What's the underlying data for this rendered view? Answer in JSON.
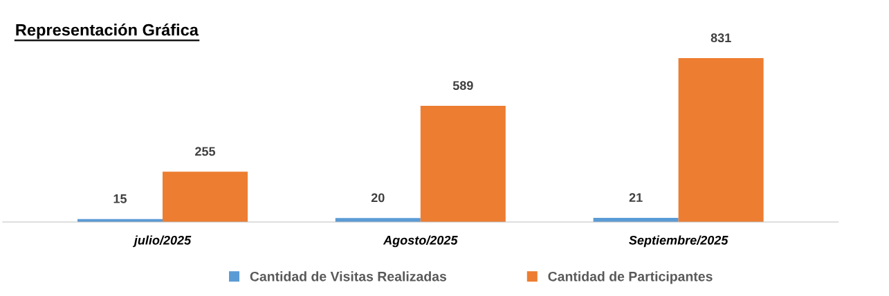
{
  "chart_data": {
    "type": "bar",
    "title": "Representación Gráfica",
    "categories": [
      "julio/2025",
      "Agosto/2025",
      "Septiembre/2025"
    ],
    "series": [
      {
        "name": "Cantidad de Visitas Realizadas",
        "color": "#5b9bd5",
        "values": [
          15,
          20,
          21
        ]
      },
      {
        "name": "Cantidad de Participantes",
        "color": "#ed7d31",
        "values": [
          255,
          589,
          831
        ]
      }
    ],
    "data_labels": true,
    "legend": "bottom",
    "grid": false
  }
}
